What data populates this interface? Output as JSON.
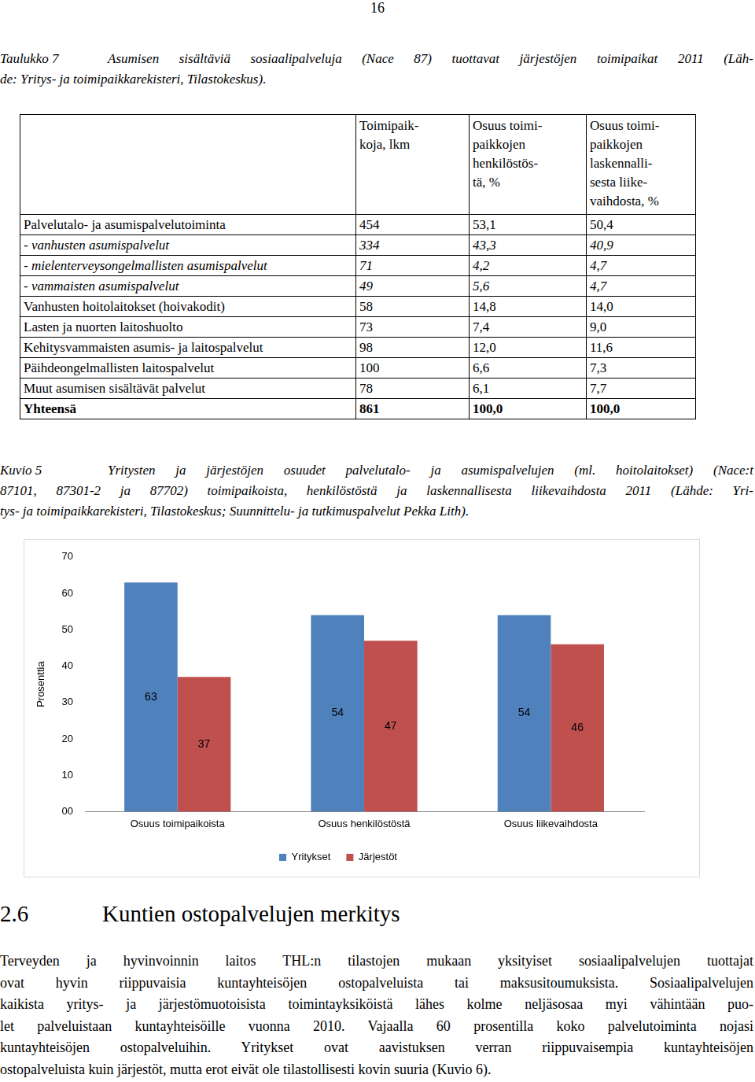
{
  "page_number": "16",
  "table_caption": {
    "label": "Taulukko 7",
    "lines": [
      "Asumisen sisältäviä sosiaalipalveluja (Nace 87) tuottavat järjestöjen toimipaikat 2011 (Läh-",
      "de: Yritys- ja toimipaikkarekisteri, Tilastokeskus)."
    ]
  },
  "table": {
    "header": [
      [],
      [
        "Toimipaik-",
        "koja, lkm"
      ],
      [
        "Osuus toimi-",
        "paikkojen",
        "henkilöstös-",
        "tä, %"
      ],
      [
        "Osuus toimi-",
        "paikkojen",
        "laskennalli-",
        "sesta liike-",
        "vaihdosta, %"
      ]
    ],
    "rows": [
      [
        "Palvelutalo- ja asumispalvelutoiminta",
        "454",
        "53,1",
        "50,4"
      ],
      [
        "- vanhusten asumispalvelut",
        "334",
        "43,3",
        "40,9"
      ],
      [
        "- mielenterveysongelmallisten asumispalvelut",
        "71",
        "4,2",
        "4,7"
      ],
      [
        "- vammaisten asumispalvelut",
        "49",
        "5,6",
        "4,7"
      ],
      [
        "Vanhusten hoitolaitokset (hoivakodit)",
        "58",
        "14,8",
        "14,0"
      ],
      [
        "Lasten ja nuorten laitoshuolto",
        "73",
        "7,4",
        "9,0"
      ],
      [
        "Kehitysvammaisten asumis- ja laitospalvelut",
        "98",
        "12,0",
        "11,6"
      ],
      [
        "Päihdeongelmallisten laitospalvelut",
        "100",
        "6,6",
        "7,3"
      ],
      [
        "Muut asumisen sisältävät palvelut",
        "78",
        "6,1",
        "7,7"
      ],
      [
        "Yhteensä",
        "861",
        "100,0",
        "100,0"
      ]
    ]
  },
  "figure_caption": {
    "label": "Kuvio 5",
    "lines": [
      "Yritysten ja järjestöjen osuudet palvelutalo- ja asumispalvelujen (ml. hoitolaitokset) (Nace:t",
      "87101, 87301-2 ja 87702) toimipaikoista, henkilöstöstä ja laskennallisesta liikevaihdosta 2011 (Lähde: Yri-",
      "tys- ja toimipaikkarekisteri, Tilastokeskus; Suunnittelu- ja tutkimuspalvelut Pekka Lith)."
    ]
  },
  "chart_data": {
    "type": "bar",
    "y_label": "Prosenttia",
    "categories": [
      "Osuus toimipaikoista",
      "Osuus henkilöstöstä",
      "Osuus liikevaihdosta"
    ],
    "series": [
      {
        "name": "Yritykset",
        "color": "#4f81bd",
        "values": [
          63,
          54,
          54
        ]
      },
      {
        "name": "Järjestöt",
        "color": "#c0504d",
        "values": [
          37,
          47,
          46
        ]
      }
    ],
    "ylim": [
      0,
      70
    ],
    "yticks": [
      {
        "value": 0,
        "label": "00"
      },
      10,
      20,
      30,
      40,
      50,
      60,
      70
    ],
    "grid": false,
    "legend": "bottom",
    "data_labels": true
  },
  "section": {
    "number": "2.6",
    "title": "Kuntien ostopalvelujen merkitys"
  },
  "paragraph_lines": [
    "Terveyden ja hyvinvoinnin laitos THL:n tilastojen mukaan yksityiset sosiaalipalvelujen tuottajat",
    "ovat hyvin riippuvaisia kuntayhteisöjen ostopalveluista tai maksusitoumuksista. Sosiaalipalvelujen",
    "kaikista yritys- ja järjestömuotoisista toimintayksiköistä lähes kolme neljäsosaa myi vähintään puo-",
    "let palveluistaan kuntayhteisöille vuonna 2010. Vajaalla 60 prosentilla koko palvelutoiminta nojasi",
    "kuntayhteisöjen ostopalveluihin. Yritykset ovat aavistuksen verran riippuvaisempia kuntayhteisöjen",
    "ostopalveluista kuin järjestöt, mutta erot eivät ole tilastollisesti kovin suuria (Kuvio 6)."
  ]
}
